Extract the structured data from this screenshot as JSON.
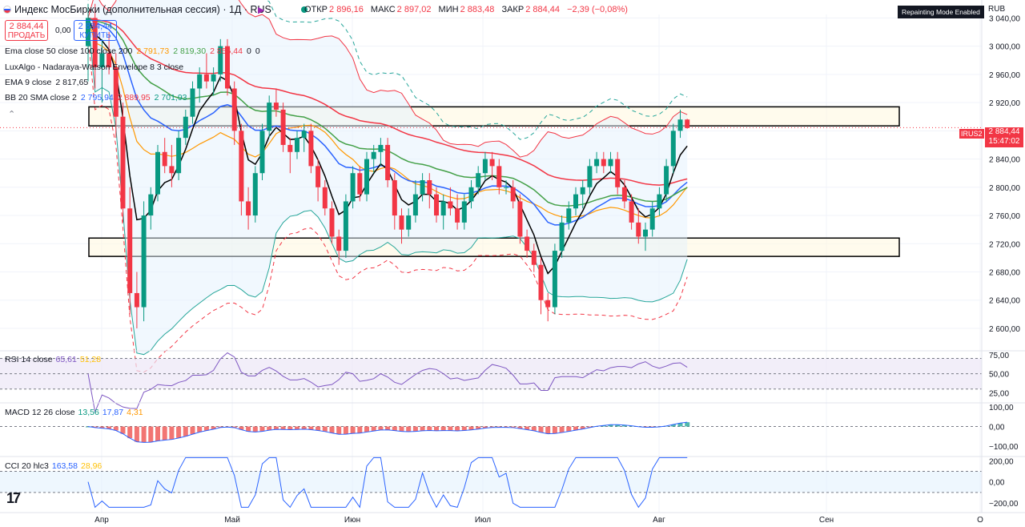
{
  "header": {
    "title": "Индекс МосБиржи (дополнительная сессия) · 1Д · RUS",
    "ohlc": [
      {
        "k": "ОТКР",
        "v": "2 896,16"
      },
      {
        "k": "МАКС",
        "v": "2 897,02"
      },
      {
        "k": "МИН",
        "v": "2 883,48"
      },
      {
        "k": "ЗАКР",
        "v": "2 884,44"
      },
      {
        "k": "",
        "v": "−2,39 (−0,08%)"
      }
    ],
    "sell_price": "2 884,44",
    "sell_label": "ПРОДАТЬ",
    "buy_price": "2 884,44",
    "buy_label": "КУПИТЬ",
    "spread": "0,00",
    "repaint_badge": "Repainting Mode Enabled",
    "currency": "RUB"
  },
  "legends": {
    "ema": {
      "label": "Ema close 50 close 100 close 200",
      "v1": "2 791,73",
      "v2": "2 819,30",
      "v3": "2 856,44",
      "v4": "0",
      "v5": "0"
    },
    "lux": {
      "label": "LuxAlgo - Nadaraya-Watson Envelope 8 3 close"
    },
    "ema9": {
      "label": "EMA 9 close",
      "v": "2 817,65"
    },
    "bb": {
      "label": "BB 20 SMA close 2",
      "v1": "2 795,94",
      "v2": "2 889,95",
      "v3": "2 701,93"
    },
    "rsi": {
      "label": "RSI 14 close",
      "v1": "65,61",
      "v2": "51,28"
    },
    "macd": {
      "label": "MACD 12 26 close",
      "v1": "13,56",
      "v2": "17,87",
      "v3": "4,31"
    },
    "cci": {
      "label": "CCI 20 hlc3",
      "v1": "163,58",
      "v2": "28,96"
    }
  },
  "price_tag": {
    "symbol": "IRUS2",
    "price": "2 884,44",
    "time": "15:47:02"
  },
  "colors": {
    "up": "#089981",
    "down": "#f23645",
    "ema50": "#2962ff",
    "ema100": "#43a047",
    "ema200": "#f23645",
    "ema9": "#000000",
    "bb_basis": "#ff9800",
    "bb_band": "#26a69a",
    "nw_upper": "#f23645",
    "nw_lower": "#26a69a"
  },
  "chart_data": {
    "type": "candlestick",
    "y_axis": {
      "ticks": [
        "3 040,00",
        "3 000,00",
        "2 960,00",
        "2 920,00",
        "2 880,00",
        "2 840,00",
        "2 800,00",
        "2 760,00",
        "2 720,00",
        "2 680,00",
        "2 640,00",
        "2 600,00"
      ],
      "ylim": [
        2575,
        3045
      ]
    },
    "x_axis": {
      "ticks": [
        "Апр",
        "Май",
        "Июн",
        "Июл",
        "Авг",
        "Сен",
        "О"
      ]
    },
    "zones": [
      {
        "from": 2887,
        "to": 2914
      },
      {
        "from": 2702,
        "to": 2728
      }
    ],
    "candles": [
      [
        3000,
        3060,
        2950,
        3040
      ],
      [
        3040,
        3060,
        2940,
        2970
      ],
      [
        2970,
        3010,
        2920,
        2990
      ],
      [
        2990,
        3020,
        2960,
        2970
      ],
      [
        2970,
        2990,
        2870,
        2900
      ],
      [
        2900,
        2920,
        2750,
        2770
      ],
      [
        2770,
        2800,
        2620,
        2650
      ],
      [
        2650,
        2680,
        2600,
        2630
      ],
      [
        2630,
        2780,
        2610,
        2760
      ],
      [
        2760,
        2800,
        2740,
        2790
      ],
      [
        2790,
        2860,
        2780,
        2850
      ],
      [
        2850,
        2870,
        2820,
        2830
      ],
      [
        2830,
        2860,
        2800,
        2820
      ],
      [
        2820,
        2880,
        2810,
        2870
      ],
      [
        2870,
        2910,
        2860,
        2900
      ],
      [
        2900,
        2950,
        2890,
        2940
      ],
      [
        2940,
        2970,
        2920,
        2960
      ],
      [
        2960,
        2990,
        2940,
        2950
      ],
      [
        2950,
        2970,
        2930,
        2960
      ],
      [
        2960,
        3010,
        2950,
        3000
      ],
      [
        3000,
        3010,
        2930,
        2940
      ],
      [
        2940,
        2950,
        2860,
        2880
      ],
      [
        2880,
        2890,
        2760,
        2780
      ],
      [
        2780,
        2800,
        2740,
        2760
      ],
      [
        2760,
        2830,
        2750,
        2820
      ],
      [
        2820,
        2890,
        2810,
        2880
      ],
      [
        2880,
        2930,
        2870,
        2920
      ],
      [
        2920,
        2940,
        2900,
        2910
      ],
      [
        2910,
        2920,
        2850,
        2860
      ],
      [
        2860,
        2870,
        2820,
        2850
      ],
      [
        2850,
        2880,
        2840,
        2870
      ],
      [
        2870,
        2890,
        2850,
        2880
      ],
      [
        2880,
        2890,
        2820,
        2830
      ],
      [
        2830,
        2840,
        2780,
        2800
      ],
      [
        2800,
        2810,
        2760,
        2770
      ],
      [
        2770,
        2780,
        2720,
        2730
      ],
      [
        2730,
        2740,
        2690,
        2710
      ],
      [
        2710,
        2790,
        2700,
        2780
      ],
      [
        2780,
        2830,
        2770,
        2820
      ],
      [
        2820,
        2830,
        2780,
        2790
      ],
      [
        2790,
        2850,
        2780,
        2840
      ],
      [
        2840,
        2860,
        2820,
        2850
      ],
      [
        2850,
        2870,
        2830,
        2860
      ],
      [
        2860,
        2870,
        2800,
        2810
      ],
      [
        2810,
        2820,
        2740,
        2760
      ],
      [
        2760,
        2770,
        2720,
        2740
      ],
      [
        2740,
        2770,
        2730,
        2760
      ],
      [
        2760,
        2810,
        2750,
        2790
      ],
      [
        2790,
        2820,
        2780,
        2810
      ],
      [
        2810,
        2820,
        2770,
        2790
      ],
      [
        2790,
        2800,
        2750,
        2760
      ],
      [
        2760,
        2790,
        2740,
        2780
      ],
      [
        2780,
        2800,
        2760,
        2770
      ],
      [
        2770,
        2790,
        2740,
        2750
      ],
      [
        2750,
        2790,
        2740,
        2780
      ],
      [
        2780,
        2810,
        2770,
        2800
      ],
      [
        2800,
        2830,
        2790,
        2820
      ],
      [
        2820,
        2850,
        2810,
        2840
      ],
      [
        2840,
        2850,
        2810,
        2830
      ],
      [
        2830,
        2840,
        2790,
        2800
      ],
      [
        2800,
        2810,
        2790,
        2800
      ],
      [
        2800,
        2810,
        2770,
        2780
      ],
      [
        2780,
        2790,
        2720,
        2730
      ],
      [
        2730,
        2740,
        2700,
        2710
      ],
      [
        2710,
        2720,
        2680,
        2690
      ],
      [
        2690,
        2700,
        2620,
        2640
      ],
      [
        2640,
        2650,
        2610,
        2630
      ],
      [
        2630,
        2720,
        2620,
        2710
      ],
      [
        2710,
        2760,
        2700,
        2750
      ],
      [
        2750,
        2780,
        2740,
        2770
      ],
      [
        2770,
        2800,
        2760,
        2790
      ],
      [
        2790,
        2810,
        2770,
        2800
      ],
      [
        2800,
        2840,
        2790,
        2830
      ],
      [
        2830,
        2850,
        2820,
        2840
      ],
      [
        2840,
        2850,
        2820,
        2830
      ],
      [
        2830,
        2850,
        2820,
        2840
      ],
      [
        2840,
        2850,
        2790,
        2800
      ],
      [
        2800,
        2810,
        2770,
        2780
      ],
      [
        2780,
        2790,
        2740,
        2750
      ],
      [
        2750,
        2770,
        2720,
        2730
      ],
      [
        2730,
        2750,
        2710,
        2740
      ],
      [
        2740,
        2780,
        2730,
        2770
      ],
      [
        2770,
        2800,
        2760,
        2790
      ],
      [
        2790,
        2840,
        2780,
        2830
      ],
      [
        2830,
        2890,
        2820,
        2880
      ],
      [
        2880,
        2910,
        2870,
        2896
      ],
      [
        2896,
        2897,
        2883,
        2884
      ]
    ],
    "rsi": {
      "ticks": [
        "75,00",
        "50,00",
        "25,00"
      ],
      "ylim": [
        15,
        80
      ]
    },
    "macd": {
      "ticks": [
        "100,00",
        "0,00",
        "−100,00"
      ],
      "ylim": [
        -140,
        120
      ]
    },
    "cci": {
      "ticks": [
        "200,00",
        "0,00",
        "−200,00"
      ],
      "ylim": [
        -260,
        240
      ]
    }
  }
}
